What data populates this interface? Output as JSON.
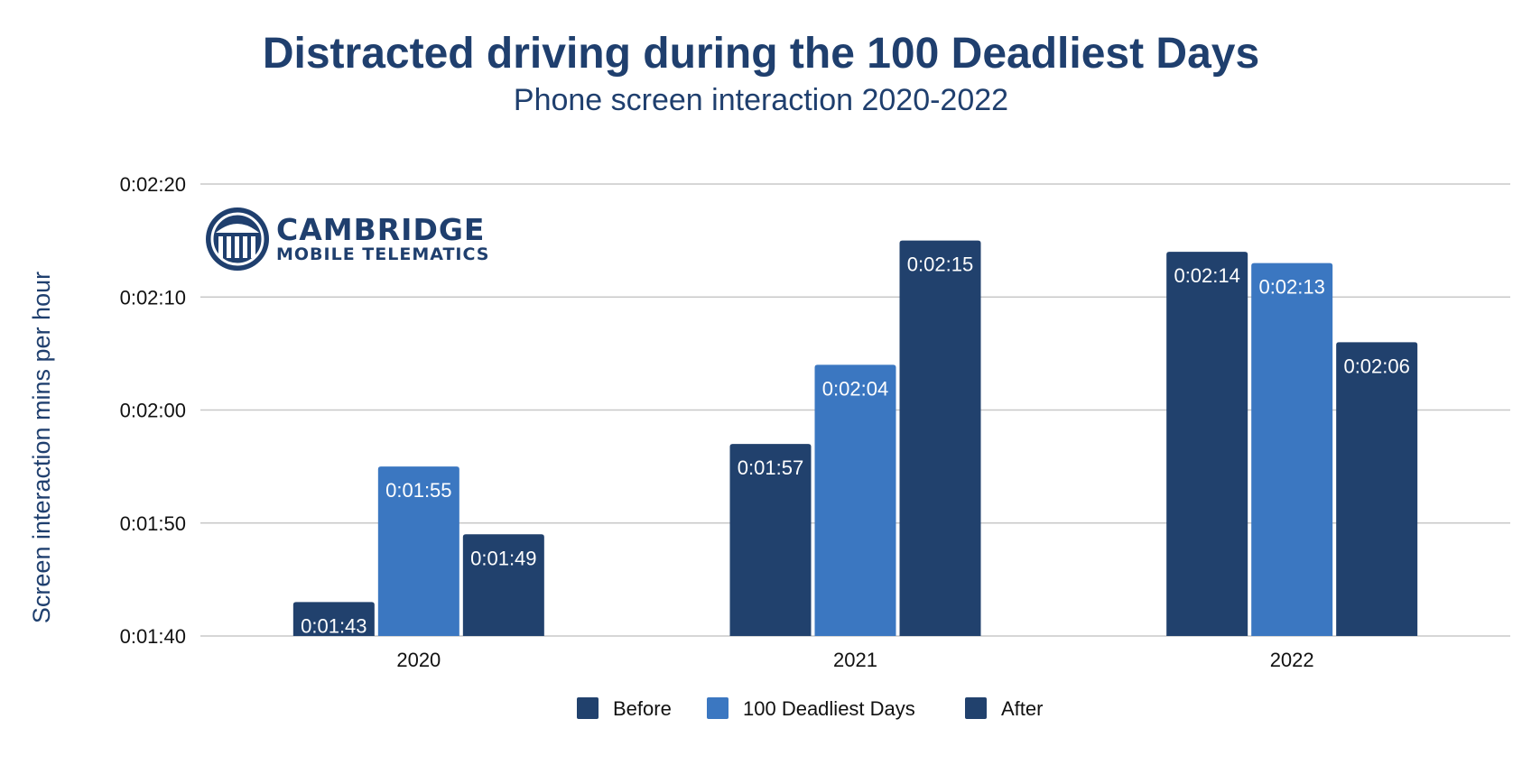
{
  "colors": {
    "before": "#21416d",
    "deadliest": "#3b77c1",
    "after": "#21416d",
    "title": "#1f3f6e"
  },
  "logo": {
    "name": "CAMBRIDGE",
    "tagline": "MOBILE TELEMATICS"
  },
  "chart_data": {
    "type": "bar",
    "title": "Distracted driving during the 100 Deadliest Days",
    "subtitle": "Phone screen interaction 2020-2022",
    "ylabel": "Screen interaction mins per hour",
    "xlabel": "",
    "categories": [
      "2020",
      "2021",
      "2022"
    ],
    "ylim": [
      "0:01:40",
      "0:02:20"
    ],
    "yticks": [
      "0:01:40",
      "0:01:50",
      "0:02:00",
      "0:02:10",
      "0:02:20"
    ],
    "grid": true,
    "legend_position": "bottom",
    "series": [
      {
        "name": "Before",
        "values": [
          "0:01:43",
          "0:01:57",
          "0:02:14"
        ]
      },
      {
        "name": "100 Deadliest Days",
        "values": [
          "0:01:55",
          "0:02:04",
          "0:02:13"
        ]
      },
      {
        "name": "After",
        "values": [
          "0:01:49",
          "0:02:15",
          "0:02:06"
        ]
      }
    ]
  }
}
